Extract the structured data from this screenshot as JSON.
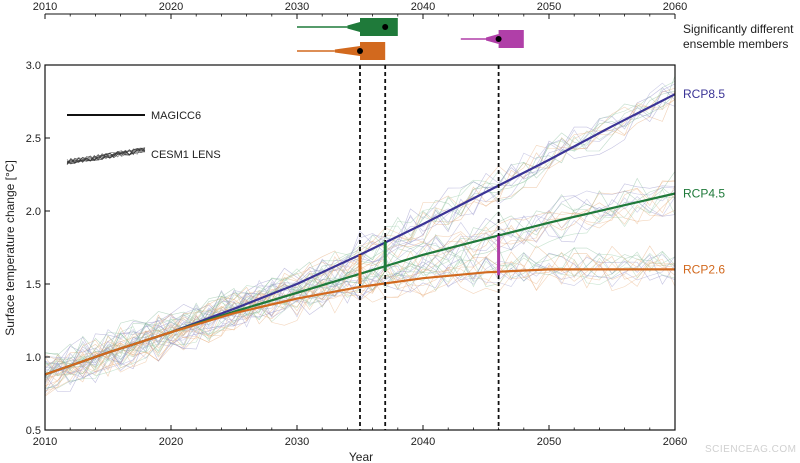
{
  "chart_data": {
    "type": "line",
    "title": "",
    "xlabel": "Year",
    "ylabel": "Surface temperature change [°C]",
    "xlim": [
      2010,
      2060
    ],
    "ylim": [
      0.5,
      3.0
    ],
    "x_ticks": [
      2010,
      2020,
      2030,
      2040,
      2050,
      2060
    ],
    "x_ticks_top": [
      2010,
      2020,
      2030,
      2040,
      2050,
      2060
    ],
    "y_ticks": [
      "0.5",
      "1.0",
      "1.5",
      "2.0",
      "2.5",
      "3.0"
    ],
    "grid": false,
    "x": [
      2010,
      2015,
      2020,
      2025,
      2030,
      2035,
      2040,
      2045,
      2050,
      2055,
      2060
    ],
    "series": [
      {
        "name": "RCP8.5",
        "color": "#3b3496",
        "values": [
          0.88,
          1.03,
          1.17,
          1.33,
          1.5,
          1.7,
          1.91,
          2.13,
          2.35,
          2.58,
          2.8
        ]
      },
      {
        "name": "RCP4.5",
        "color": "#1f7a3a",
        "values": [
          0.88,
          1.03,
          1.17,
          1.31,
          1.44,
          1.57,
          1.7,
          1.81,
          1.92,
          2.02,
          2.12
        ]
      },
      {
        "name": "RCP2.6",
        "color": "#d2691e",
        "values": [
          0.88,
          1.03,
          1.17,
          1.3,
          1.4,
          1.48,
          1.54,
          1.58,
          1.6,
          1.6,
          1.6
        ]
      }
    ],
    "vertical_markers": [
      {
        "x": 2035,
        "color": "#d2691e",
        "y_low": 1.5,
        "y_high": 1.7
      },
      {
        "x": 2037,
        "color": "#1f7a3a",
        "y_low": 1.59,
        "y_high": 1.79
      },
      {
        "x": 2046,
        "color": "#b03fa8",
        "y_low": 1.56,
        "y_high": 1.83
      }
    ],
    "emergence_distributions": [
      {
        "scenario": "RCP8.5",
        "color": "#1f7a3a",
        "x_min": 2030,
        "x_q_low": 2034,
        "x_box_start": 2035,
        "x_box_end": 2038,
        "x_marker": 2037
      },
      {
        "scenario": "RCP4.5",
        "color": "#d2691e",
        "x_min": 2030,
        "x_q_low": 2033,
        "x_box_start": 2035,
        "x_box_end": 2037,
        "x_marker": 2035
      },
      {
        "scenario": "RCP2.6",
        "color": "#b03fa8",
        "x_min": 2043,
        "x_q_low": 2045,
        "x_box_start": 2046,
        "x_box_end": 2048,
        "x_marker": 2046
      }
    ],
    "legend": {
      "placement": "top-left",
      "entries": [
        {
          "label": "MAGICC6",
          "style": "line"
        },
        {
          "label": "CESM1 LENS",
          "style": "ensemble"
        }
      ]
    },
    "annotation": "Significantly different ensemble members",
    "series_labels": [
      "RCP8.5",
      "RCP4.5",
      "RCP2.6"
    ]
  },
  "watermark": "SCIENCEAG.COM"
}
